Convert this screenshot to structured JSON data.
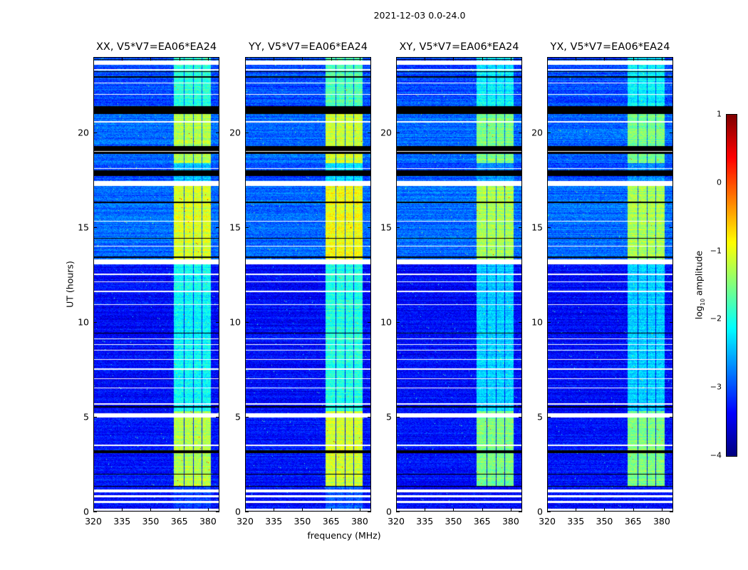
{
  "suptitle": "2021-12-03 0.0-24.0",
  "chart_data": {
    "type": "heatmap",
    "panels": [
      {
        "title": "XX, V5*V7=EA06*EA24",
        "band_offset": 0.0
      },
      {
        "title": "YY, V5*V7=EA06*EA24",
        "band_offset": 0.15
      },
      {
        "title": "XY, V5*V7=EA06*EA24",
        "band_offset": -0.25
      },
      {
        "title": "YX, V5*V7=EA06*EA24",
        "band_offset": -0.25
      }
    ],
    "xlabel": "frequency (MHz)",
    "ylabel": "UT (hours)",
    "xlim": [
      320,
      386
    ],
    "ylim": [
      0,
      24
    ],
    "xticks": [
      "320",
      "335",
      "350",
      "365",
      "380"
    ],
    "yticks": [
      "0",
      "5",
      "10",
      "15",
      "20"
    ],
    "colorbar": {
      "label_main": "log",
      "label_sub": "10",
      "label_rest": " amplitude",
      "range": [
        -4,
        1
      ],
      "ticks": [
        "1",
        "0",
        "−1",
        "−2",
        "−3",
        "−4"
      ],
      "colormap": "jet"
    },
    "band_channels_mhz": [
      [
        362,
        367.3
      ],
      [
        367.7,
        372.1
      ],
      [
        372.6,
        376.6
      ],
      [
        377.1,
        381.4
      ]
    ],
    "segments": [
      {
        "ut": [
          0,
          1.35
        ],
        "background": -3.35,
        "band": -3.1
      },
      {
        "ut": [
          1.35,
          5.3
        ],
        "background": -3.3,
        "band": -1.25
      },
      {
        "ut": [
          5.3,
          13.2
        ],
        "background": -3.35,
        "band": -2.1
      },
      {
        "ut": [
          13.2,
          17.3
        ],
        "background": -2.85,
        "band": -1.05
      },
      {
        "ut": [
          17.3,
          18.4
        ],
        "background": -3.0,
        "band": -2.4
      },
      {
        "ut": [
          18.4,
          21.3
        ],
        "background": -2.85,
        "band": -1.25
      },
      {
        "ut": [
          21.3,
          24
        ],
        "background": -3.0,
        "band": -1.9
      }
    ],
    "flagged_ut": [
      [
        0.05,
        0.15
      ],
      [
        0.45,
        0.55
      ],
      [
        0.75,
        0.85
      ],
      [
        1.0,
        1.15
      ],
      [
        3.45,
        3.55
      ],
      [
        4.95,
        5.2
      ],
      [
        5.65,
        5.7
      ],
      [
        6.5,
        6.55
      ],
      [
        7.0,
        7.05
      ],
      [
        7.5,
        7.55
      ],
      [
        8.0,
        8.05
      ],
      [
        8.5,
        8.55
      ],
      [
        8.8,
        8.85
      ],
      [
        9.1,
        9.15
      ],
      [
        10.9,
        10.95
      ],
      [
        11.6,
        11.65
      ],
      [
        12.1,
        12.15
      ],
      [
        12.5,
        12.55
      ],
      [
        13.05,
        13.3
      ],
      [
        14.0,
        14.05
      ],
      [
        15.3,
        15.35
      ],
      [
        17.2,
        17.45
      ],
      [
        18.1,
        18.15
      ],
      [
        19.0,
        19.05
      ],
      [
        20.55,
        20.6
      ],
      [
        22.0,
        22.05
      ],
      [
        22.6,
        22.65
      ],
      [
        23.3,
        23.35
      ],
      [
        23.6,
        23.8
      ]
    ],
    "zero_ut": [
      [
        1.3,
        1.35
      ],
      [
        1.95,
        2.0
      ],
      [
        3.1,
        3.25
      ],
      [
        5.5,
        5.55
      ],
      [
        9.4,
        9.45
      ],
      [
        13.4,
        13.45
      ],
      [
        14.4,
        14.45
      ],
      [
        16.3,
        16.35
      ],
      [
        17.7,
        18.0
      ],
      [
        18.9,
        19.3
      ],
      [
        21.0,
        21.4
      ],
      [
        22.9,
        23.0
      ],
      [
        23.2,
        23.25
      ],
      [
        23.85,
        23.9
      ]
    ]
  }
}
